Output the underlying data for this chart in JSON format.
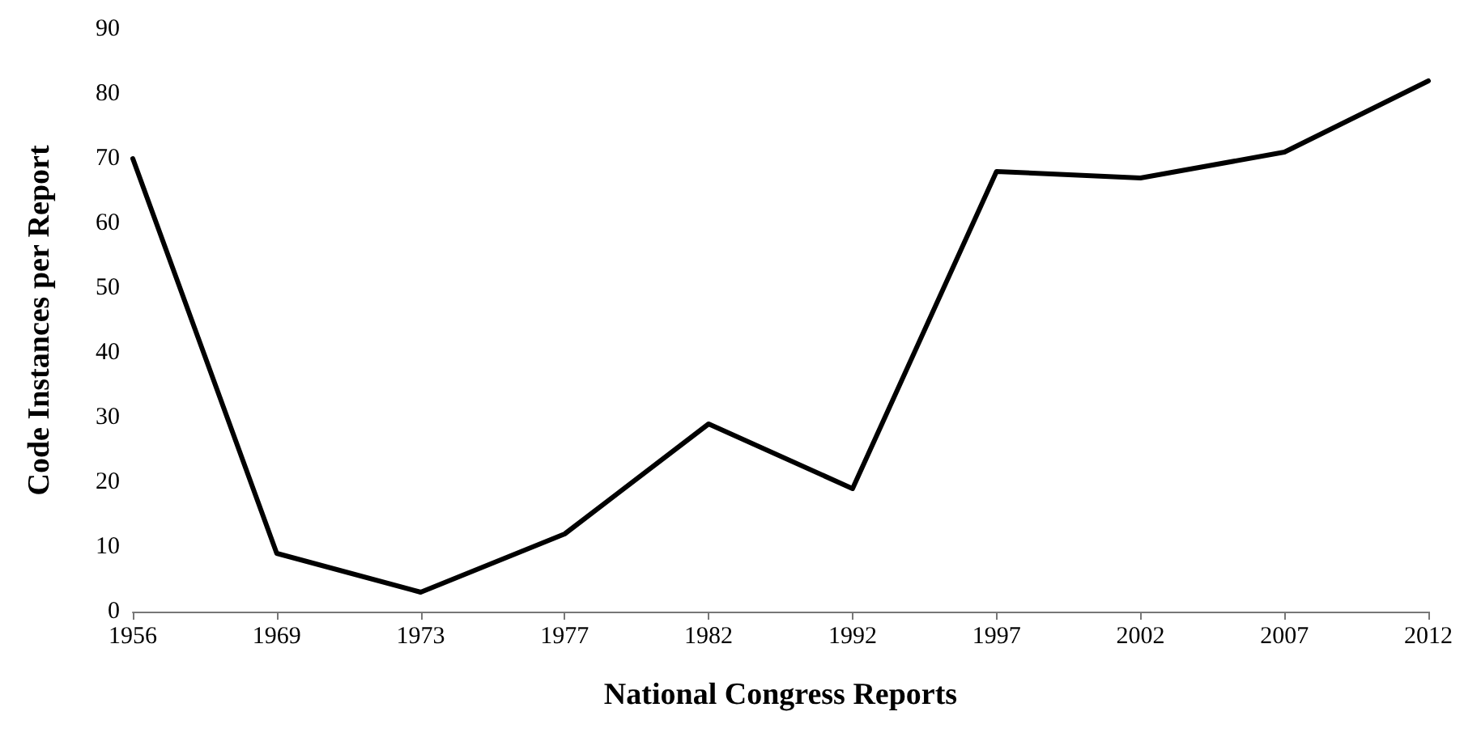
{
  "chart_data": {
    "type": "line",
    "xlabel": "National Congress Reports",
    "ylabel": "Code Instances per Report",
    "categories": [
      "1956",
      "1969",
      "1973",
      "1977",
      "1982",
      "1992",
      "1997",
      "2002",
      "2007",
      "2012"
    ],
    "series": [
      {
        "color": "#000000",
        "values": [
          70,
          9,
          3,
          12,
          29,
          19,
          68,
          67,
          71,
          82
        ]
      }
    ],
    "ylim": [
      0,
      90
    ],
    "yticks": [
      0,
      10,
      20,
      30,
      40,
      50,
      60,
      70,
      80,
      90
    ],
    "grid": false,
    "marker": "none",
    "line_style": "solid"
  }
}
